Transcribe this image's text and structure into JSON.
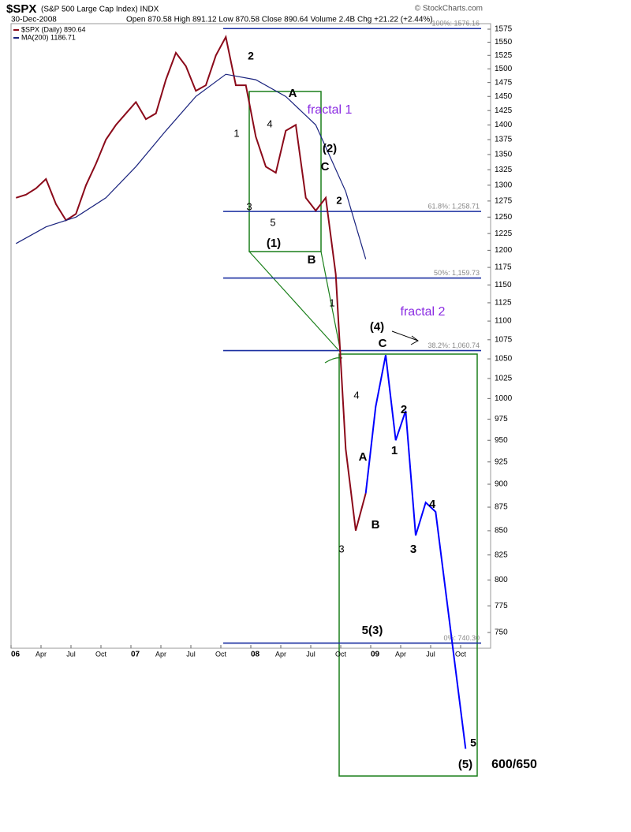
{
  "chart_data": {
    "type": "line",
    "symbol": "$SPX",
    "title": "(S&P 500 Large Cap Index) INDX",
    "date": "30-Dec-2008",
    "quote": "Open 870.58  High 891.12  Low 870.58  Close 890.64  Volume 2.4B  Chg +21.22 (+2.44%)",
    "credit": "© StockCharts.com",
    "log_scale": true,
    "ylim": [
      750,
      1575
    ],
    "yticks": [
      750,
      775,
      800,
      825,
      850,
      875,
      900,
      925,
      950,
      975,
      1000,
      1025,
      1050,
      1075,
      1100,
      1125,
      1150,
      1175,
      1200,
      1225,
      1250,
      1275,
      1300,
      1325,
      1350,
      1375,
      1400,
      1425,
      1450,
      1475,
      1500,
      1525,
      1550,
      1575
    ],
    "xticks": [
      {
        "value": "2006-01",
        "label": "06"
      },
      {
        "value": "2006-04",
        "label": "Apr"
      },
      {
        "value": "2006-07",
        "label": "Jul"
      },
      {
        "value": "2006-10",
        "label": "Oct"
      },
      {
        "value": "2007-01",
        "label": "07"
      },
      {
        "value": "2007-04",
        "label": "Apr"
      },
      {
        "value": "2007-07",
        "label": "Jul"
      },
      {
        "value": "2007-10",
        "label": "Oct"
      },
      {
        "value": "2008-01",
        "label": "08"
      },
      {
        "value": "2008-04",
        "label": "Apr"
      },
      {
        "value": "2008-07",
        "label": "Jul"
      },
      {
        "value": "2008-10",
        "label": "Oct"
      },
      {
        "value": "2009-01",
        "label": "09"
      },
      {
        "value": "2009-04",
        "label": "Apr"
      },
      {
        "value": "2009-07",
        "label": "Jul"
      },
      {
        "value": "2009-10",
        "label": "Oct"
      }
    ],
    "series": [
      {
        "name": "$SPX (Daily) 890.64",
        "color": "#8b0a1a",
        "x": [
          "2006-01",
          "2006-02",
          "2006-03",
          "2006-04",
          "2006-05",
          "2006-06",
          "2006-07",
          "2006-08",
          "2006-09",
          "2006-10",
          "2006-11",
          "2006-12",
          "2007-01",
          "2007-02",
          "2007-03",
          "2007-04",
          "2007-05",
          "2007-06",
          "2007-07",
          "2007-08",
          "2007-09",
          "2007-10",
          "2007-11",
          "2007-12",
          "2008-01",
          "2008-02",
          "2008-03",
          "2008-04",
          "2008-05",
          "2008-06",
          "2008-07",
          "2008-08",
          "2008-09",
          "2008-10",
          "2008-11",
          "2008-12"
        ],
        "values": [
          1280,
          1285,
          1295,
          1310,
          1270,
          1245,
          1255,
          1300,
          1335,
          1375,
          1400,
          1420,
          1440,
          1410,
          1420,
          1480,
          1530,
          1505,
          1460,
          1470,
          1525,
          1560,
          1470,
          1470,
          1380,
          1330,
          1320,
          1390,
          1400,
          1280,
          1260,
          1280,
          1165,
          940,
          850,
          890
        ]
      },
      {
        "name": "MA(200) 1186.71",
        "color": "#1a237e",
        "x": [
          "2006-01",
          "2006-04",
          "2006-07",
          "2006-10",
          "2007-01",
          "2007-04",
          "2007-07",
          "2007-10",
          "2008-01",
          "2008-04",
          "2008-07",
          "2008-10",
          "2008-12"
        ],
        "values": [
          1210,
          1235,
          1250,
          1280,
          1330,
          1390,
          1450,
          1490,
          1480,
          1450,
          1400,
          1290,
          1187
        ]
      },
      {
        "color": "#0000ff",
        "x": [
          "2008-12",
          "2009-01",
          "2009-02",
          "2009-03",
          "2009-04",
          "2009-05",
          "2009-06",
          "2009-07",
          "2009-10"
        ],
        "values": [
          890,
          990,
          1055,
          950,
          985,
          845,
          880,
          870,
          650
        ]
      }
    ],
    "fib_levels": [
      {
        "value": 1576.16,
        "label": "100%: 1576.16"
      },
      {
        "value": 1258.71,
        "label": "61.8%: 1,258.71"
      },
      {
        "value": 1159.73,
        "label": "50%: 1,159.73"
      },
      {
        "value": 1060.74,
        "label": "38.2%: 1,060.74"
      },
      {
        "value": 740.3,
        "label": "0%: 740.30"
      }
    ],
    "annotations": [
      "2",
      "1",
      "4",
      "A",
      "fractal 1",
      "(2)",
      "C",
      "3",
      "5",
      "2",
      "(1)",
      "B",
      "1",
      "fractal 2",
      "(4)",
      "C",
      "4",
      "2",
      "1",
      "A",
      "B",
      "4",
      "3",
      "3",
      "5(3)",
      "5",
      "(5)",
      "600/650"
    ]
  }
}
